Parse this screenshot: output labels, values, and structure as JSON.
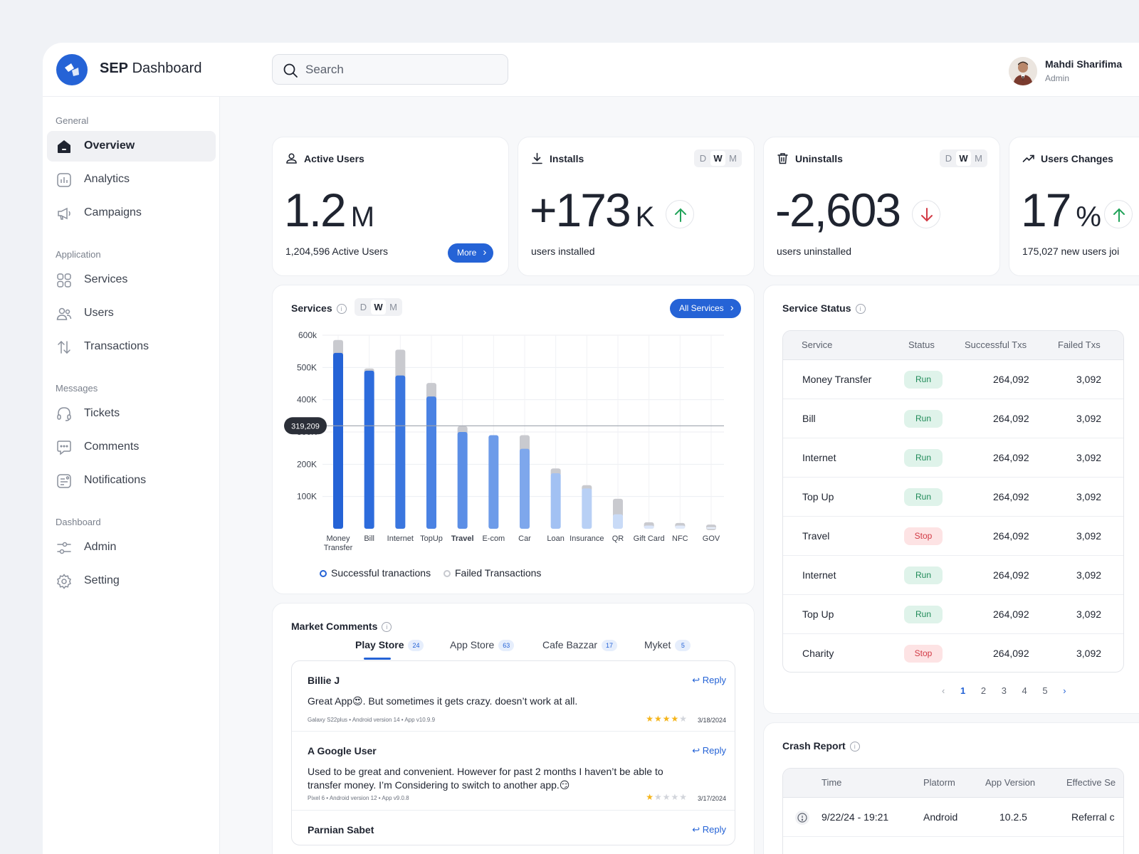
{
  "brand": {
    "bold": "SEP",
    "rest": "Dashboard"
  },
  "search": {
    "placeholder": "Search"
  },
  "user": {
    "name": "Mahdi Sharifima",
    "role": "Admin"
  },
  "sidebar": {
    "sections": [
      "General",
      "Application",
      "Messages",
      "Dashboard"
    ],
    "items": [
      {
        "label": "Overview",
        "icon": "home-icon"
      },
      {
        "label": "Analytics",
        "icon": "chart-icon"
      },
      {
        "label": "Campaigns",
        "icon": "megaphone-icon"
      },
      {
        "label": "Services",
        "icon": "grid-icon"
      },
      {
        "label": "Users",
        "icon": "users-icon"
      },
      {
        "label": "Transactions",
        "icon": "transfer-icon"
      },
      {
        "label": "Tickets",
        "icon": "headset-icon"
      },
      {
        "label": "Comments",
        "icon": "comment-icon"
      },
      {
        "label": "Notifications",
        "icon": "notification-icon"
      },
      {
        "label": "Admin",
        "icon": "sliders-icon"
      },
      {
        "label": "Setting",
        "icon": "gear-icon"
      }
    ]
  },
  "period": {
    "d": "D",
    "w": "W",
    "m": "M",
    "selected": "W"
  },
  "kpis": {
    "active_users": {
      "title": "Active Users",
      "value": "1.2",
      "unit": "M",
      "sub": "1,204,596 Active Users",
      "button": "More"
    },
    "installs": {
      "title": "Installs",
      "value": "+173",
      "unit": "K",
      "sub": "users installed",
      "trend": "up"
    },
    "uninstalls": {
      "title": "Uninstalls",
      "value": "-2,603",
      "unit": "",
      "sub": "users uninstalled",
      "trend": "down"
    },
    "users_changes": {
      "title": "Users Changes",
      "value": "17",
      "unit": "%",
      "sub": "175,027 new users joi"
    }
  },
  "services_chart": {
    "title": "Services",
    "button": "All Services",
    "highlight_label": "319,209",
    "legend_success": "Successful tranactions",
    "legend_failed": "Failed Transactions"
  },
  "chart_data": {
    "type": "bar",
    "categories": [
      "Money Transfer",
      "Bill",
      "Internet",
      "TopUp",
      "Travel",
      "E-com",
      "Car",
      "Loan",
      "Insurance",
      "QR",
      "Gift Card",
      "NFC",
      "GOV"
    ],
    "series": [
      {
        "name": "Successful tranactions",
        "values": [
          545000,
          490000,
          475000,
          410000,
          300000,
          290000,
          248000,
          172000,
          125000,
          45000,
          10000,
          10000,
          5000
        ]
      },
      {
        "name": "Failed Transactions",
        "values": [
          40000,
          7000,
          80000,
          42000,
          18000,
          0,
          42000,
          15000,
          10000,
          48000,
          10000,
          8000,
          8000
        ]
      }
    ],
    "y_ticks": [
      "100K",
      "200K",
      "300K",
      "400K",
      "500K",
      "600k"
    ],
    "ylim": [
      0,
      600000
    ],
    "reference_line": 319209,
    "bold_category": "Travel",
    "legend": "bottom-center",
    "grid": true
  },
  "market": {
    "title": "Market Comments",
    "tabs": [
      {
        "label": "Play Store",
        "count": "24"
      },
      {
        "label": "App Store",
        "count": "63"
      },
      {
        "label": "Cafe Bazzar",
        "count": "17"
      },
      {
        "label": "Myket",
        "count": "5"
      }
    ],
    "reply_label": "Reply",
    "comments": [
      {
        "name": "Billie J",
        "text": "Great App😍. But sometimes it gets crazy. doesn’t work at all.",
        "meta": "Galaxy S22plus • Android version 14 • App v10.9.9",
        "rating": 4,
        "date": "3/18/2024"
      },
      {
        "name": "A Google User",
        "text": "Used to be great and convenient. However for past 2 months I haven’t be able to transfer money. I’m Considering to switch to another app.😏",
        "meta": "Pixel 6 • Android version 12 • App v9.0.8",
        "rating": 1,
        "date": "3/17/2024"
      },
      {
        "name": "Parnian Sabet",
        "text": "",
        "meta": "",
        "rating": 0,
        "date": ""
      }
    ]
  },
  "service_status": {
    "title": "Service Status",
    "columns": [
      "Service",
      "Status",
      "Successful Txs",
      "Failed Txs"
    ],
    "rows": [
      {
        "service": "Money Transfer",
        "status": "Run",
        "success": "264,092",
        "failed": "3,092"
      },
      {
        "service": "Bill",
        "status": "Run",
        "success": "264,092",
        "failed": "3,092"
      },
      {
        "service": "Internet",
        "status": "Run",
        "success": "264,092",
        "failed": "3,092"
      },
      {
        "service": "Top Up",
        "status": "Run",
        "success": "264,092",
        "failed": "3,092"
      },
      {
        "service": "Travel",
        "status": "Stop",
        "success": "264,092",
        "failed": "3,092"
      },
      {
        "service": "Internet",
        "status": "Run",
        "success": "264,092",
        "failed": "3,092"
      },
      {
        "service": "Top Up",
        "status": "Run",
        "success": "264,092",
        "failed": "3,092"
      },
      {
        "service": "Charity",
        "status": "Stop",
        "success": "264,092",
        "failed": "3,092"
      }
    ],
    "pages": [
      "1",
      "2",
      "3",
      "4",
      "5"
    ],
    "current_page": "1"
  },
  "crash_report": {
    "title": "Crash Report",
    "columns": [
      "Time",
      "Platorm",
      "App Version",
      "Effective Se"
    ],
    "rows": [
      {
        "time": "9/22/24 - 19:21",
        "platform": "Android",
        "version": "10.2.5",
        "effective": "Referral c"
      }
    ]
  },
  "colors": {
    "accent": "#2563d6",
    "run": "#1f8a58",
    "stop": "#d23a45",
    "up": "#22a35a",
    "down": "#d23a45"
  }
}
